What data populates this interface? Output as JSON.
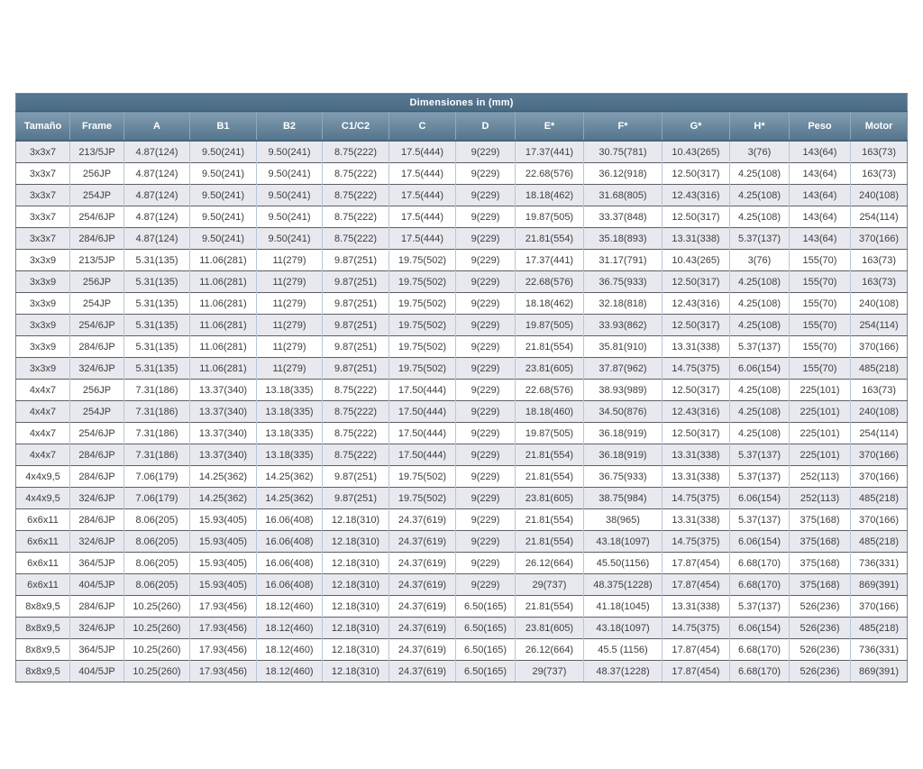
{
  "table": {
    "title": "Dimensiones in (mm)",
    "columns": [
      "Tamaño",
      "Frame",
      "A",
      "B1",
      "B2",
      "C1/C2",
      "C",
      "D",
      "E*",
      "F*",
      "G*",
      "H*",
      "Peso",
      "Motor"
    ],
    "rows": [
      [
        "3x3x7",
        "213/5JP",
        "4.87(124)",
        "9.50(241)",
        "9.50(241)",
        "8.75(222)",
        "17.5(444)",
        "9(229)",
        "17.37(441)",
        "30.75(781)",
        "10.43(265)",
        "3(76)",
        "143(64)",
        "163(73)"
      ],
      [
        "3x3x7",
        "256JP",
        "4.87(124)",
        "9.50(241)",
        "9.50(241)",
        "8.75(222)",
        "17.5(444)",
        "9(229)",
        "22.68(576)",
        "36.12(918)",
        "12.50(317)",
        "4.25(108)",
        "143(64)",
        "163(73)"
      ],
      [
        "3x3x7",
        "254JP",
        "4.87(124)",
        "9.50(241)",
        "9.50(241)",
        "8.75(222)",
        "17.5(444)",
        "9(229)",
        "18.18(462)",
        "31.68(805)",
        "12.43(316)",
        "4.25(108)",
        "143(64)",
        "240(108)"
      ],
      [
        "3x3x7",
        "254/6JP",
        "4.87(124)",
        "9.50(241)",
        "9.50(241)",
        "8.75(222)",
        "17.5(444)",
        "9(229)",
        "19.87(505)",
        "33.37(848)",
        "12.50(317)",
        "4.25(108)",
        "143(64)",
        "254(114)"
      ],
      [
        "3x3x7",
        "284/6JP",
        "4.87(124)",
        "9.50(241)",
        "9.50(241)",
        "8.75(222)",
        "17.5(444)",
        "9(229)",
        "21.81(554)",
        "35.18(893)",
        "13.31(338)",
        "5.37(137)",
        "143(64)",
        "370(166)"
      ],
      [
        "3x3x9",
        "213/5JP",
        "5.31(135)",
        "11.06(281)",
        "11(279)",
        "9.87(251)",
        "19.75(502)",
        "9(229)",
        "17.37(441)",
        "31.17(791)",
        "10.43(265)",
        "3(76)",
        "155(70)",
        "163(73)"
      ],
      [
        "3x3x9",
        "256JP",
        "5.31(135)",
        "11.06(281)",
        "11(279)",
        "9.87(251)",
        "19.75(502)",
        "9(229)",
        "22.68(576)",
        "36.75(933)",
        "12.50(317)",
        "4.25(108)",
        "155(70)",
        "163(73)"
      ],
      [
        "3x3x9",
        "254JP",
        "5.31(135)",
        "11.06(281)",
        "11(279)",
        "9.87(251)",
        "19.75(502)",
        "9(229)",
        "18.18(462)",
        "32.18(818)",
        "12.43(316)",
        "4.25(108)",
        "155(70)",
        "240(108)"
      ],
      [
        "3x3x9",
        "254/6JP",
        "5.31(135)",
        "11.06(281)",
        "11(279)",
        "9.87(251)",
        "19.75(502)",
        "9(229)",
        "19.87(505)",
        "33.93(862)",
        "12.50(317)",
        "4.25(108)",
        "155(70)",
        "254(114)"
      ],
      [
        "3x3x9",
        "284/6JP",
        "5.31(135)",
        "11.06(281)",
        "11(279)",
        "9.87(251)",
        "19.75(502)",
        "9(229)",
        "21.81(554)",
        "35.81(910)",
        "13.31(338)",
        "5.37(137)",
        "155(70)",
        "370(166)"
      ],
      [
        "3x3x9",
        "324/6JP",
        "5.31(135)",
        "11.06(281)",
        "11(279)",
        "9.87(251)",
        "19.75(502)",
        "9(229)",
        "23.81(605)",
        "37.87(962)",
        "14.75(375)",
        "6.06(154)",
        "155(70)",
        "485(218)"
      ],
      [
        "4x4x7",
        "256JP",
        "7.31(186)",
        "13.37(340)",
        "13.18(335)",
        "8.75(222)",
        "17.50(444)",
        "9(229)",
        "22.68(576)",
        "38.93(989)",
        "12.50(317)",
        "4.25(108)",
        "225(101)",
        "163(73)"
      ],
      [
        "4x4x7",
        "254JP",
        "7.31(186)",
        "13.37(340)",
        "13.18(335)",
        "8.75(222)",
        "17.50(444)",
        "9(229)",
        "18.18(460)",
        "34.50(876)",
        "12.43(316)",
        "4.25(108)",
        "225(101)",
        "240(108)"
      ],
      [
        "4x4x7",
        "254/6JP",
        "7.31(186)",
        "13.37(340)",
        "13.18(335)",
        "8.75(222)",
        "17.50(444)",
        "9(229)",
        "19.87(505)",
        "36.18(919)",
        "12.50(317)",
        "4.25(108)",
        "225(101)",
        "254(114)"
      ],
      [
        "4x4x7",
        "284/6JP",
        "7.31(186)",
        "13.37(340)",
        "13.18(335)",
        "8.75(222)",
        "17.50(444)",
        "9(229)",
        "21.81(554)",
        "36.18(919)",
        "13.31(338)",
        "5.37(137)",
        "225(101)",
        "370(166)"
      ],
      [
        "4x4x9,5",
        "284/6JP",
        "7.06(179)",
        "14.25(362)",
        "14.25(362)",
        "9.87(251)",
        "19.75(502)",
        "9(229)",
        "21.81(554)",
        "36.75(933)",
        "13.31(338)",
        "5.37(137)",
        "252(113)",
        "370(166)"
      ],
      [
        "4x4x9,5",
        "324/6JP",
        "7.06(179)",
        "14.25(362)",
        "14.25(362)",
        "9.87(251)",
        "19.75(502)",
        "9(229)",
        "23.81(605)",
        "38.75(984)",
        "14.75(375)",
        "6.06(154)",
        "252(113)",
        "485(218)"
      ],
      [
        "6x6x11",
        "284/6JP",
        "8.06(205)",
        "15.93(405)",
        "16.06(408)",
        "12.18(310)",
        "24.37(619)",
        "9(229)",
        "21.81(554)",
        "38(965)",
        "13.31(338)",
        "5.37(137)",
        "375(168)",
        "370(166)"
      ],
      [
        "6x6x11",
        "324/6JP",
        "8.06(205)",
        "15.93(405)",
        "16.06(408)",
        "12.18(310)",
        "24.37(619)",
        "9(229)",
        "21.81(554)",
        "43.18(1097)",
        "14.75(375)",
        "6.06(154)",
        "375(168)",
        "485(218)"
      ],
      [
        "6x6x11",
        "364/5JP",
        "8.06(205)",
        "15.93(405)",
        "16.06(408)",
        "12.18(310)",
        "24.37(619)",
        "9(229)",
        "26.12(664)",
        "45.50(1156)",
        "17.87(454)",
        "6.68(170)",
        "375(168)",
        "736(331)"
      ],
      [
        "6x6x11",
        "404/5JP",
        "8.06(205)",
        "15.93(405)",
        "16.06(408)",
        "12.18(310)",
        "24.37(619)",
        "9(229)",
        "29(737)",
        "48.375(1228)",
        "17.87(454)",
        "6.68(170)",
        "375(168)",
        "869(391)"
      ],
      [
        "8x8x9,5",
        "284/6JP",
        "10.25(260)",
        "17.93(456)",
        "18.12(460)",
        "12.18(310)",
        "24.37(619)",
        "6.50(165)",
        "21.81(554)",
        "41.18(1045)",
        "13.31(338)",
        "5.37(137)",
        "526(236)",
        "370(166)"
      ],
      [
        "8x8x9,5",
        "324/6JP",
        "10.25(260)",
        "17.93(456)",
        "18.12(460)",
        "12.18(310)",
        "24.37(619)",
        "6.50(165)",
        "23.81(605)",
        "43.18(1097)",
        "14.75(375)",
        "6.06(154)",
        "526(236)",
        "485(218)"
      ],
      [
        "8x8x9,5",
        "364/5JP",
        "10.25(260)",
        "17.93(456)",
        "18.12(460)",
        "12.18(310)",
        "24.37(619)",
        "6.50(165)",
        "26.12(664)",
        "45.5 (1156)",
        "17.87(454)",
        "6.68(170)",
        "526(236)",
        "736(331)"
      ],
      [
        "8x8x9,5",
        "404/5JP",
        "10.25(260)",
        "17.93(456)",
        "18.12(460)",
        "12.18(310)",
        "24.37(619)",
        "6.50(165)",
        "29(737)",
        "48.37(1228)",
        "17.87(454)",
        "6.68(170)",
        "526(236)",
        "869(391)"
      ]
    ]
  }
}
